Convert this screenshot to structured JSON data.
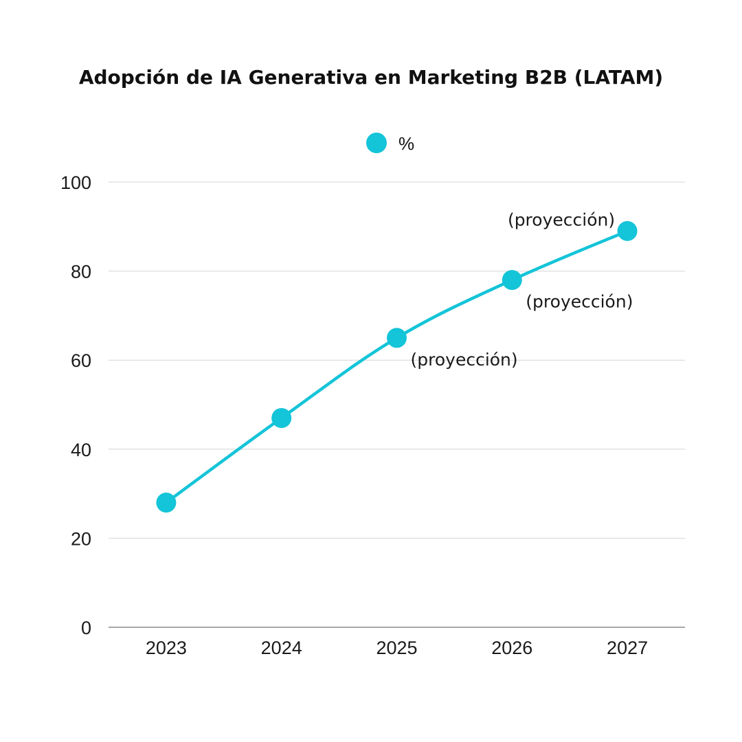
{
  "chart_data": {
    "type": "line",
    "title": "Adopción de IA Generativa en Marketing B2B (LATAM)",
    "xlabel": "",
    "ylabel": "",
    "categories": [
      "2023",
      "2024",
      "2025",
      "2026",
      "2027"
    ],
    "series": [
      {
        "name": "%",
        "values": [
          28,
          47,
          65,
          78,
          89
        ],
        "color": "#14c4d8"
      }
    ],
    "ylim": [
      0,
      100
    ],
    "yticks": [
      0,
      20,
      40,
      60,
      80,
      100
    ],
    "grid": true,
    "legend": {
      "position": "top-center",
      "entries": [
        "%"
      ]
    },
    "annotations": [
      {
        "category": "2025",
        "text": "(proyección)",
        "placement": "below-right"
      },
      {
        "category": "2026",
        "text": "(proyección)",
        "placement": "below-right"
      },
      {
        "category": "2027",
        "text": "(proyección)",
        "placement": "above-left"
      }
    ]
  }
}
